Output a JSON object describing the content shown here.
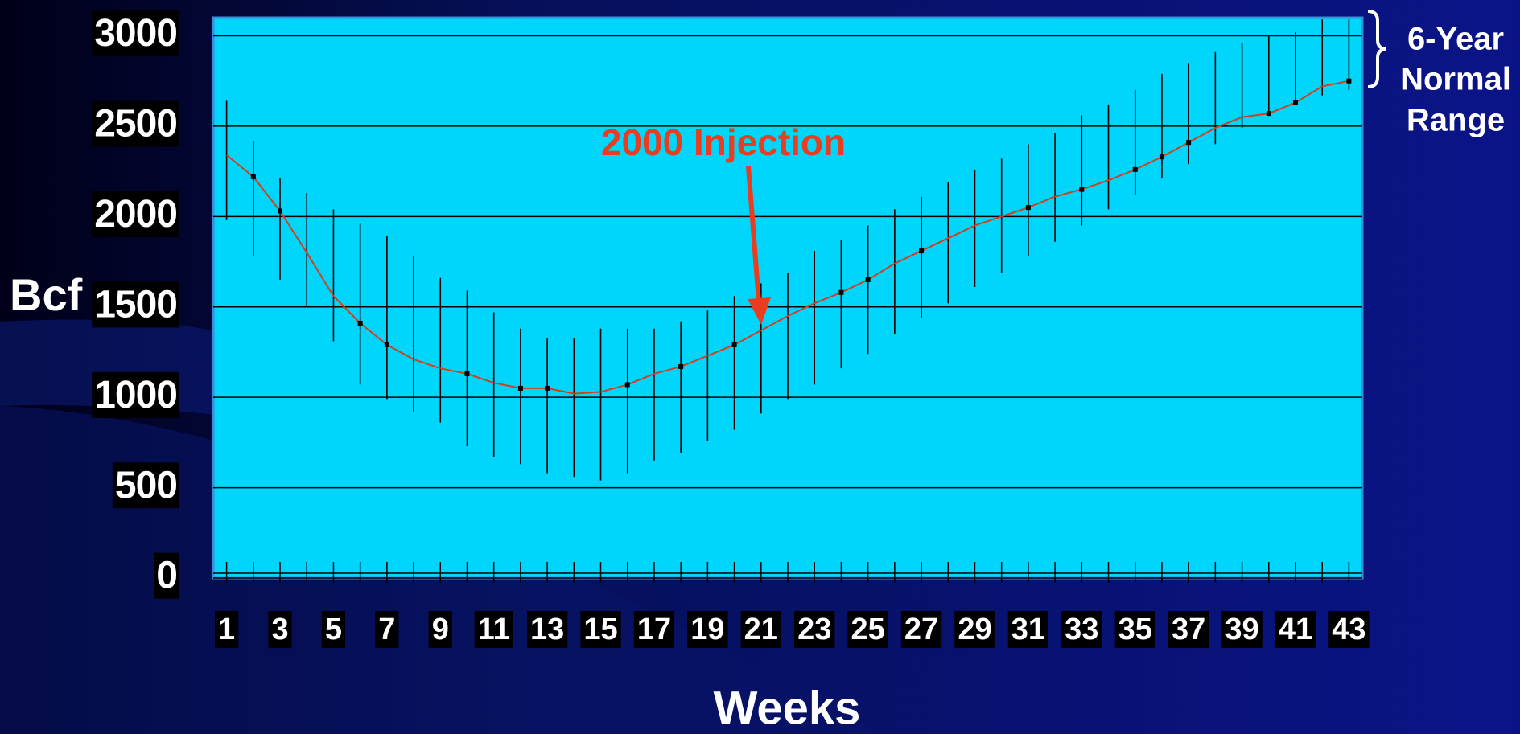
{
  "chart_data": {
    "type": "line",
    "y_label": "Bcf",
    "x_label": "Weeks",
    "annotation": "2000 Injection",
    "range_label": [
      "6-Year",
      "Normal",
      "Range"
    ],
    "x": [
      1,
      2,
      3,
      4,
      5,
      6,
      7,
      8,
      9,
      10,
      11,
      12,
      13,
      14,
      15,
      16,
      17,
      18,
      19,
      20,
      21,
      22,
      23,
      24,
      25,
      26,
      27,
      28,
      29,
      30,
      31,
      32,
      33,
      34,
      35,
      36,
      37,
      38,
      39,
      40,
      41,
      42,
      43
    ],
    "series": [
      {
        "color": "#d0401e",
        "values": [
          2340,
          2220,
          2030,
          1800,
          1560,
          1410,
          1290,
          1210,
          1160,
          1130,
          1080,
          1050,
          1050,
          1020,
          1030,
          1070,
          1130,
          1170,
          1230,
          1290,
          1370,
          1450,
          1520,
          1580,
          1650,
          1740,
          1810,
          1880,
          1950,
          2000,
          2050,
          2110,
          2150,
          2200,
          2260,
          2330,
          2410,
          2490,
          2550,
          2570,
          2630,
          2720,
          2750
        ]
      },
      {
        "color": "#000000",
        "values": [
          null,
          2220,
          2030,
          null,
          null,
          1410,
          1290,
          null,
          null,
          1130,
          null,
          1050,
          1050,
          null,
          null,
          1070,
          null,
          1170,
          null,
          1290,
          null,
          null,
          null,
          1580,
          1650,
          null,
          1810,
          null,
          null,
          null,
          2050,
          null,
          2150,
          null,
          2260,
          2330,
          2410,
          null,
          null,
          2570,
          2630,
          null,
          2750
        ]
      }
    ],
    "range_low": [
      1980,
      1780,
      1650,
      1500,
      1310,
      1070,
      990,
      920,
      860,
      730,
      670,
      630,
      580,
      560,
      540,
      580,
      650,
      690,
      760,
      820,
      910,
      990,
      1070,
      1160,
      1240,
      1350,
      1440,
      1520,
      1610,
      1690,
      1780,
      1860,
      1950,
      2040,
      2120,
      2210,
      2290,
      2400,
      2490,
      2570,
      2640,
      2670,
      2700
    ],
    "range_high": [
      2640,
      2420,
      2210,
      2130,
      2040,
      1960,
      1890,
      1780,
      1660,
      1590,
      1470,
      1380,
      1330,
      1330,
      1380,
      1380,
      1380,
      1420,
      1480,
      1560,
      1630,
      1690,
      1810,
      1870,
      1950,
      2040,
      2110,
      2190,
      2260,
      2320,
      2400,
      2460,
      2560,
      2620,
      2700,
      2790,
      2850,
      2910,
      2960,
      3000,
      3020,
      3090,
      3090
    ],
    "xlim": [
      0.5,
      43.5
    ],
    "ylim": [
      0,
      3100
    ],
    "xticks": [
      1,
      3,
      5,
      7,
      9,
      11,
      13,
      15,
      17,
      19,
      21,
      23,
      25,
      27,
      29,
      31,
      33,
      35,
      37,
      39,
      41,
      43
    ],
    "yticks": [
      0,
      500,
      1000,
      1500,
      2000,
      2500,
      3000
    ],
    "grid": true,
    "plot_color": "#00d6fc"
  }
}
